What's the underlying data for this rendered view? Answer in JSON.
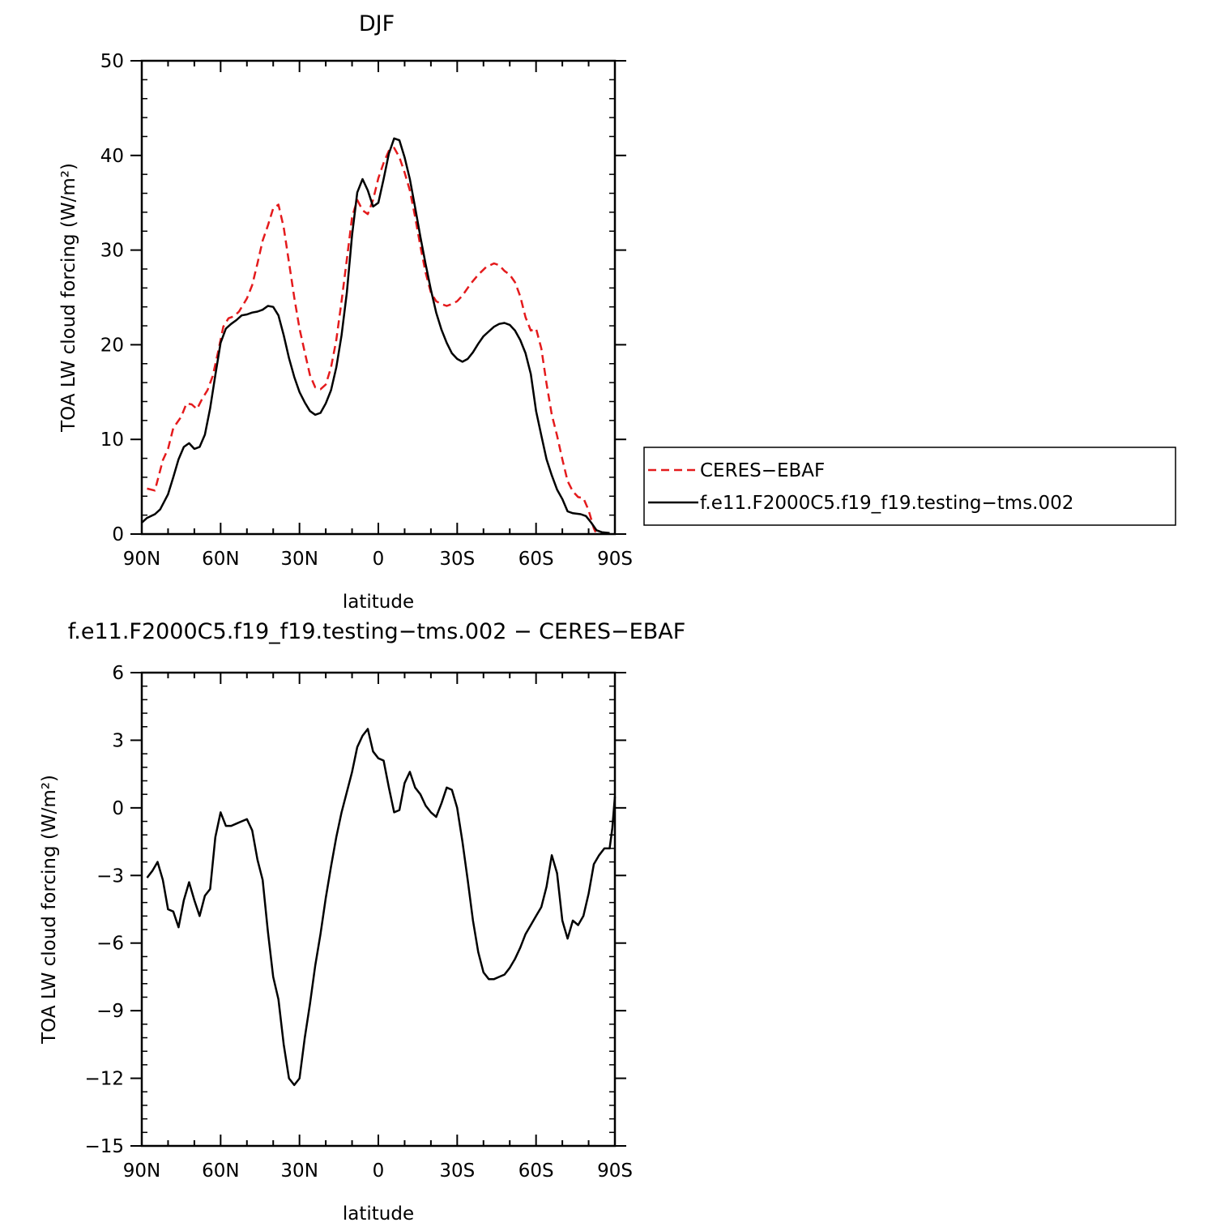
{
  "chart_data": [
    {
      "type": "line",
      "title": "DJF",
      "xlabel": "latitude",
      "ylabel": "TOA LW cloud forcing (W/m²)",
      "xlim": [
        90,
        -90
      ],
      "ylim": [
        0,
        50
      ],
      "x_ticks": [
        90,
        60,
        30,
        0,
        -30,
        -60,
        -90
      ],
      "x_tick_labels": [
        "90N",
        "60N",
        "30N",
        "0",
        "30S",
        "60S",
        "90S"
      ],
      "y_ticks": [
        0,
        10,
        20,
        30,
        40,
        50
      ],
      "y_tick_labels": [
        "0",
        "10",
        "20",
        "30",
        "40",
        "50"
      ],
      "legend_position": "right",
      "series": [
        {
          "name": "CERES−EBAF",
          "color": "#e41a1c",
          "style": "dashed",
          "points": [
            [
              88,
              4.8
            ],
            [
              85,
              4.6
            ],
            [
              82,
              7.8
            ],
            [
              80,
              9.0
            ],
            [
              78,
              11.2
            ],
            [
              75,
              12.4
            ],
            [
              73,
              13.8
            ],
            [
              71,
              13.7
            ],
            [
              69,
              13.2
            ],
            [
              67,
              14.3
            ],
            [
              65,
              15.2
            ],
            [
              63,
              16.7
            ],
            [
              61,
              19.2
            ],
            [
              59,
              21.9
            ],
            [
              57,
              22.8
            ],
            [
              55,
              23.0
            ],
            [
              53,
              23.5
            ],
            [
              50,
              24.9
            ],
            [
              48,
              26.3
            ],
            [
              46,
              28.6
            ],
            [
              44,
              31.0
            ],
            [
              42,
              32.6
            ],
            [
              40,
              34.4
            ],
            [
              38,
              34.8
            ],
            [
              36,
              32.4
            ],
            [
              34,
              28.7
            ],
            [
              32,
              25.0
            ],
            [
              30,
              21.7
            ],
            [
              28,
              19.2
            ],
            [
              26,
              16.8
            ],
            [
              24,
              15.5
            ],
            [
              22,
              15.3
            ],
            [
              20,
              15.8
            ],
            [
              18,
              17.6
            ],
            [
              16,
              20.5
            ],
            [
              14,
              24.6
            ],
            [
              12,
              29.0
            ],
            [
              10,
              33.5
            ],
            [
              8,
              35.3
            ],
            [
              6,
              34.2
            ],
            [
              4,
              33.8
            ],
            [
              2,
              35.3
            ],
            [
              0,
              37.6
            ],
            [
              -2,
              39.2
            ],
            [
              -4,
              40.5
            ],
            [
              -6,
              40.8
            ],
            [
              -8,
              39.8
            ],
            [
              -10,
              38.2
            ],
            [
              -12,
              36.3
            ],
            [
              -14,
              33.5
            ],
            [
              -16,
              30.4
            ],
            [
              -18,
              27.6
            ],
            [
              -20,
              25.5
            ],
            [
              -22,
              24.6
            ],
            [
              -24,
              24.3
            ],
            [
              -26,
              24.1
            ],
            [
              -28,
              24.3
            ],
            [
              -30,
              24.6
            ],
            [
              -32,
              25.2
            ],
            [
              -35,
              26.4
            ],
            [
              -38,
              27.4
            ],
            [
              -41,
              28.2
            ],
            [
              -44,
              28.6
            ],
            [
              -46,
              28.4
            ],
            [
              -48,
              27.8
            ],
            [
              -50,
              27.4
            ],
            [
              -52,
              26.6
            ],
            [
              -54,
              25.1
            ],
            [
              -56,
              22.9
            ],
            [
              -58,
              21.5
            ],
            [
              -60,
              21.7
            ],
            [
              -62,
              19.6
            ],
            [
              -64,
              15.9
            ],
            [
              -66,
              12.6
            ],
            [
              -68,
              10.4
            ],
            [
              -70,
              7.9
            ],
            [
              -72,
              5.6
            ],
            [
              -74,
              4.5
            ],
            [
              -76,
              3.9
            ],
            [
              -78,
              3.8
            ],
            [
              -80,
              2.5
            ],
            [
              -82,
              0.6
            ],
            [
              -83,
              0.0
            ]
          ]
        },
        {
          "name": "f.e11.F2000C5.f19_f19.testing−tms.002",
          "color": "#000000",
          "style": "solid",
          "points": [
            [
              90,
              1.2
            ],
            [
              88,
              1.7
            ],
            [
              85,
              2.1
            ],
            [
              83,
              2.6
            ],
            [
              80,
              4.2
            ],
            [
              78,
              6.0
            ],
            [
              76,
              7.9
            ],
            [
              74,
              9.2
            ],
            [
              72,
              9.6
            ],
            [
              70,
              9.0
            ],
            [
              68,
              9.2
            ],
            [
              66,
              10.5
            ],
            [
              64,
              13.3
            ],
            [
              62,
              16.8
            ],
            [
              60,
              20.2
            ],
            [
              58,
              21.7
            ],
            [
              56,
              22.2
            ],
            [
              54,
              22.6
            ],
            [
              52,
              23.1
            ],
            [
              50,
              23.2
            ],
            [
              48,
              23.4
            ],
            [
              46,
              23.5
            ],
            [
              44,
              23.7
            ],
            [
              42,
              24.1
            ],
            [
              40,
              24.0
            ],
            [
              38,
              23.1
            ],
            [
              36,
              21.0
            ],
            [
              34,
              18.6
            ],
            [
              32,
              16.6
            ],
            [
              30,
              15.0
            ],
            [
              28,
              13.9
            ],
            [
              26,
              13.0
            ],
            [
              24,
              12.6
            ],
            [
              22,
              12.8
            ],
            [
              20,
              13.8
            ],
            [
              18,
              15.2
            ],
            [
              16,
              17.6
            ],
            [
              14,
              21.0
            ],
            [
              12,
              25.5
            ],
            [
              10,
              31.6
            ],
            [
              8,
              36.1
            ],
            [
              6,
              37.5
            ],
            [
              4,
              36.3
            ],
            [
              2,
              34.6
            ],
            [
              0,
              35.0
            ],
            [
              -2,
              37.5
            ],
            [
              -4,
              40.2
            ],
            [
              -6,
              41.8
            ],
            [
              -8,
              41.6
            ],
            [
              -10,
              39.8
            ],
            [
              -12,
              37.5
            ],
            [
              -14,
              34.5
            ],
            [
              -16,
              31.4
            ],
            [
              -18,
              28.5
            ],
            [
              -20,
              25.8
            ],
            [
              -22,
              23.4
            ],
            [
              -24,
              21.6
            ],
            [
              -26,
              20.2
            ],
            [
              -28,
              19.1
            ],
            [
              -30,
              18.5
            ],
            [
              -32,
              18.2
            ],
            [
              -34,
              18.5
            ],
            [
              -36,
              19.2
            ],
            [
              -38,
              20.1
            ],
            [
              -40,
              20.9
            ],
            [
              -42,
              21.4
            ],
            [
              -44,
              21.9
            ],
            [
              -46,
              22.2
            ],
            [
              -48,
              22.3
            ],
            [
              -50,
              22.1
            ],
            [
              -52,
              21.5
            ],
            [
              -54,
              20.5
            ],
            [
              -56,
              19.1
            ],
            [
              -58,
              16.9
            ],
            [
              -60,
              13.0
            ],
            [
              -62,
              10.4
            ],
            [
              -64,
              7.9
            ],
            [
              -66,
              6.2
            ],
            [
              -68,
              4.7
            ],
            [
              -70,
              3.7
            ],
            [
              -72,
              2.4
            ],
            [
              -74,
              2.2
            ],
            [
              -77,
              2.1
            ],
            [
              -79,
              1.9
            ],
            [
              -81,
              1.2
            ],
            [
              -83,
              0.4
            ],
            [
              -85,
              0.2
            ],
            [
              -88,
              0.1
            ]
          ]
        }
      ]
    },
    {
      "type": "line",
      "title": "f.e11.F2000C5.f19_f19.testing−tms.002 − CERES−EBAF",
      "xlabel": "latitude",
      "ylabel": "TOA LW cloud forcing (W/m²)",
      "xlim": [
        90,
        -90
      ],
      "ylim": [
        -15,
        6
      ],
      "x_ticks": [
        90,
        60,
        30,
        0,
        -30,
        -60,
        -90
      ],
      "x_tick_labels": [
        "90N",
        "60N",
        "30N",
        "0",
        "30S",
        "60S",
        "90S"
      ],
      "y_ticks": [
        6,
        3,
        0,
        -3,
        -6,
        -9,
        -12,
        -15
      ],
      "y_tick_labels": [
        "6",
        "3",
        "0",
        "−3",
        "−6",
        "−9",
        "−12",
        "−15"
      ],
      "series": [
        {
          "color": "#000000",
          "style": "solid",
          "points": [
            [
              88,
              -3.1
            ],
            [
              86,
              -2.8
            ],
            [
              84,
              -2.4
            ],
            [
              82,
              -3.2
            ],
            [
              80,
              -4.5
            ],
            [
              78,
              -4.6
            ],
            [
              76,
              -5.3
            ],
            [
              74,
              -4.1
            ],
            [
              72,
              -3.3
            ],
            [
              70,
              -4.1
            ],
            [
              68,
              -4.8
            ],
            [
              66,
              -3.9
            ],
            [
              64,
              -3.6
            ],
            [
              62,
              -1.3
            ],
            [
              60,
              -0.2
            ],
            [
              58,
              -0.8
            ],
            [
              56,
              -0.8
            ],
            [
              54,
              -0.7
            ],
            [
              52,
              -0.6
            ],
            [
              50,
              -0.5
            ],
            [
              48,
              -1.0
            ],
            [
              46,
              -2.3
            ],
            [
              44,
              -3.2
            ],
            [
              42,
              -5.5
            ],
            [
              40,
              -7.5
            ],
            [
              38,
              -8.5
            ],
            [
              36,
              -10.5
            ],
            [
              34,
              -12.0
            ],
            [
              32,
              -12.3
            ],
            [
              30,
              -12.0
            ],
            [
              28,
              -10.2
            ],
            [
              26,
              -8.7
            ],
            [
              24,
              -7.0
            ],
            [
              22,
              -5.6
            ],
            [
              20,
              -4.0
            ],
            [
              18,
              -2.6
            ],
            [
              16,
              -1.3
            ],
            [
              14,
              -0.2
            ],
            [
              12,
              0.7
            ],
            [
              10,
              1.6
            ],
            [
              8,
              2.7
            ],
            [
              6,
              3.2
            ],
            [
              4,
              3.5
            ],
            [
              2,
              2.5
            ],
            [
              0,
              2.2
            ],
            [
              -2,
              2.1
            ],
            [
              -4,
              0.9
            ],
            [
              -6,
              -0.2
            ],
            [
              -8,
              -0.1
            ],
            [
              -10,
              1.1
            ],
            [
              -12,
              1.6
            ],
            [
              -14,
              0.9
            ],
            [
              -16,
              0.6
            ],
            [
              -18,
              0.1
            ],
            [
              -20,
              -0.2
            ],
            [
              -22,
              -0.4
            ],
            [
              -24,
              0.2
            ],
            [
              -26,
              0.9
            ],
            [
              -28,
              0.8
            ],
            [
              -30,
              0.0
            ],
            [
              -32,
              -1.5
            ],
            [
              -34,
              -3.2
            ],
            [
              -36,
              -5.0
            ],
            [
              -38,
              -6.4
            ],
            [
              -40,
              -7.3
            ],
            [
              -42,
              -7.6
            ],
            [
              -44,
              -7.6
            ],
            [
              -46,
              -7.5
            ],
            [
              -48,
              -7.4
            ],
            [
              -50,
              -7.1
            ],
            [
              -52,
              -6.7
            ],
            [
              -54,
              -6.2
            ],
            [
              -56,
              -5.6
            ],
            [
              -58,
              -5.2
            ],
            [
              -60,
              -4.8
            ],
            [
              -62,
              -4.4
            ],
            [
              -64,
              -3.5
            ],
            [
              -66,
              -2.1
            ],
            [
              -68,
              -2.9
            ],
            [
              -70,
              -5.0
            ],
            [
              -72,
              -5.8
            ],
            [
              -74,
              -5.0
            ],
            [
              -76,
              -5.2
            ],
            [
              -78,
              -4.8
            ],
            [
              -80,
              -3.8
            ],
            [
              -82,
              -2.5
            ],
            [
              -84,
              -2.1
            ],
            [
              -86,
              -1.8
            ],
            [
              -88,
              -1.8
            ],
            [
              -89,
              -0.9
            ],
            [
              -90,
              0.5
            ]
          ]
        }
      ]
    }
  ]
}
